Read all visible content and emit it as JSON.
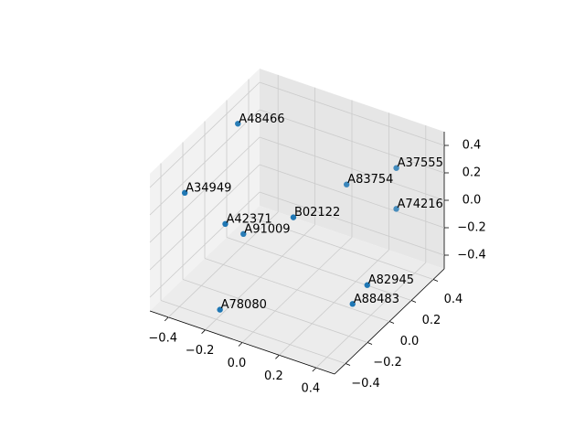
{
  "chart_data": {
    "type": "scatter3d",
    "labels": [
      "A48466",
      "A37555",
      "A83754",
      "A34949",
      "A74216",
      "B02122",
      "A42371",
      "A91009",
      "A82945",
      "A88483",
      "A78080"
    ],
    "x": [
      -0.38,
      0.3,
      0.09,
      -0.43,
      0.27,
      -0.02,
      -0.27,
      -0.35,
      0.38,
      0.36,
      -0.18
    ],
    "y": [
      0.1,
      0.4,
      0.3,
      -0.3,
      0.45,
      0.0,
      -0.2,
      0.1,
      0.0,
      -0.1,
      -0.4
    ],
    "z": [
      0.46,
      0.22,
      0.08,
      0.24,
      -0.13,
      0.02,
      0.01,
      -0.33,
      -0.29,
      -0.36,
      -0.42
    ],
    "color": "#1f77b4",
    "xlim": [
      -0.5,
      0.5
    ],
    "ylim": [
      -0.5,
      0.5
    ],
    "zlim": [
      -0.5,
      0.5
    ],
    "xticks": [
      {
        "value": -0.4,
        "label": "−0.4"
      },
      {
        "value": -0.2,
        "label": "−0.2"
      },
      {
        "value": 0,
        "label": "0.0"
      },
      {
        "value": 0.2,
        "label": "0.2"
      },
      {
        "value": 0.4,
        "label": "0.4"
      }
    ],
    "yticks": [
      {
        "value": -0.4,
        "label": "−0.4"
      },
      {
        "value": -0.2,
        "label": "−0.2"
      },
      {
        "value": 0,
        "label": "0.0"
      },
      {
        "value": 0.2,
        "label": "0.2"
      },
      {
        "value": 0.4,
        "label": "0.4"
      }
    ],
    "zticks": [
      {
        "value": -0.4,
        "label": "−0.4"
      },
      {
        "value": -0.2,
        "label": "−0.2"
      },
      {
        "value": 0,
        "label": "0.0"
      },
      {
        "value": 0.2,
        "label": "0.2"
      },
      {
        "value": 0.4,
        "label": "0.4"
      }
    ],
    "grid": true
  }
}
